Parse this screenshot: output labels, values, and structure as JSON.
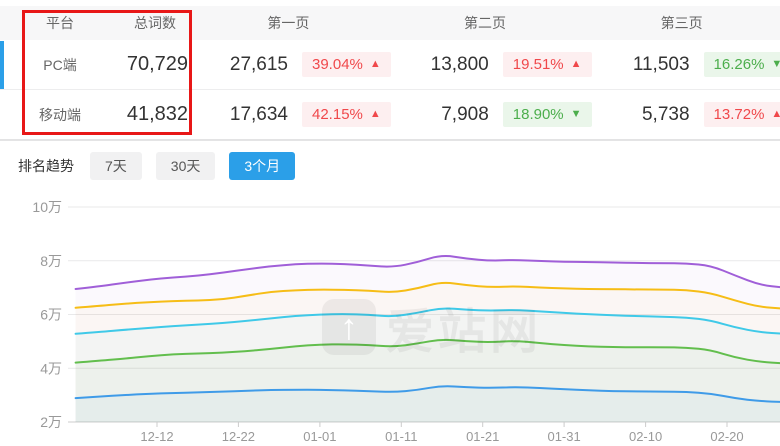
{
  "colors": {
    "accent": "#2b9fe8",
    "red": "#f0484b",
    "red_bg": "#fdeff0",
    "green": "#4cae4c",
    "green_bg": "#eaf6ea",
    "annotation": "#e81717"
  },
  "table": {
    "headers": [
      "平台",
      "总词数",
      "第一页",
      "第二页",
      "第三页"
    ],
    "rows": [
      {
        "platform": "PC端",
        "total": "70,729",
        "page1": {
          "count": "27,615",
          "pct": "39.04%",
          "arrow": "▲",
          "tone": "red"
        },
        "page2": {
          "count": "13,800",
          "pct": "19.51%",
          "arrow": "▲",
          "tone": "red"
        },
        "page3": {
          "count": "11,503",
          "pct": "16.26%",
          "arrow": "▼",
          "tone": "green"
        }
      },
      {
        "platform": "移动端",
        "total": "41,832",
        "page1": {
          "count": "17,634",
          "pct": "42.15%",
          "arrow": "▲",
          "tone": "red"
        },
        "page2": {
          "count": "7,908",
          "pct": "18.90%",
          "arrow": "▼",
          "tone": "green"
        },
        "page3": {
          "count": "5,738",
          "pct": "13.72%",
          "arrow": "▲",
          "tone": "red"
        }
      }
    ]
  },
  "trend": {
    "label": "排名趋势",
    "tabs": [
      {
        "label": "7天",
        "active": false
      },
      {
        "label": "30天",
        "active": false
      },
      {
        "label": "3个月",
        "active": true
      }
    ]
  },
  "watermark": {
    "text": "爱站网",
    "icon": "aizhan-arrow-logo"
  },
  "chart_data": {
    "type": "line",
    "title": "排名趋势 (3个月)",
    "legend": "none",
    "grid": true,
    "y_axis": {
      "tick_labels": [
        "2万",
        "4万",
        "6万",
        "8万",
        "10万"
      ],
      "tick_values": [
        20000,
        40000,
        60000,
        80000,
        100000
      ],
      "range": [
        20000,
        100000
      ]
    },
    "x_axis": {
      "tick_labels": [
        "12-12",
        "12-22",
        "01-01",
        "01-11",
        "01-21",
        "01-31",
        "02-10",
        "02-20"
      ],
      "tick_days": [
        10,
        20,
        30,
        40,
        50,
        60,
        70,
        80
      ]
    },
    "x_days": [
      0,
      3,
      6,
      9,
      12,
      15,
      18,
      21,
      24,
      27,
      30,
      33,
      36,
      39,
      42,
      45,
      48,
      51,
      54,
      57,
      60,
      63,
      66,
      69,
      72,
      75,
      78,
      81,
      84,
      87
    ],
    "series": [
      {
        "name": "series-purple",
        "color": "#a05fd8",
        "values_wan": [
          6.95,
          7.05,
          7.18,
          7.3,
          7.38,
          7.44,
          7.55,
          7.68,
          7.8,
          7.87,
          7.9,
          7.88,
          7.82,
          7.76,
          7.95,
          8.22,
          8.08,
          8.0,
          8.03,
          7.99,
          7.96,
          7.95,
          7.93,
          7.92,
          7.91,
          7.9,
          7.82,
          7.45,
          7.1,
          7.0
        ]
      },
      {
        "name": "series-yellow",
        "color": "#f6bd16",
        "values_wan": [
          6.25,
          6.32,
          6.4,
          6.46,
          6.5,
          6.52,
          6.56,
          6.7,
          6.85,
          6.9,
          6.93,
          6.92,
          6.89,
          6.82,
          6.97,
          7.22,
          7.09,
          7.02,
          7.05,
          7.0,
          6.97,
          6.95,
          6.94,
          6.93,
          6.93,
          6.91,
          6.8,
          6.52,
          6.28,
          6.22
        ]
      },
      {
        "name": "series-cyan",
        "color": "#3fc9e8",
        "values_wan": [
          5.28,
          5.35,
          5.43,
          5.5,
          5.57,
          5.62,
          5.68,
          5.76,
          5.86,
          5.95,
          6.0,
          6.02,
          5.99,
          5.92,
          6.06,
          6.25,
          6.17,
          6.14,
          6.17,
          6.12,
          6.06,
          6.01,
          5.97,
          5.94,
          5.92,
          5.89,
          5.78,
          5.52,
          5.34,
          5.28
        ]
      },
      {
        "name": "series-green",
        "color": "#62be4d",
        "values_wan": [
          4.21,
          4.28,
          4.36,
          4.45,
          4.52,
          4.55,
          4.58,
          4.64,
          4.72,
          4.82,
          4.88,
          4.89,
          4.87,
          4.8,
          4.92,
          5.08,
          5.0,
          4.97,
          5.02,
          4.94,
          4.86,
          4.81,
          4.79,
          4.78,
          4.78,
          4.77,
          4.68,
          4.4,
          4.24,
          4.18
        ]
      },
      {
        "name": "series-blue",
        "color": "#3f9be8",
        "values_wan": [
          2.89,
          2.95,
          3.0,
          3.05,
          3.08,
          3.1,
          3.13,
          3.16,
          3.19,
          3.2,
          3.2,
          3.18,
          3.15,
          3.11,
          3.19,
          3.35,
          3.29,
          3.27,
          3.3,
          3.27,
          3.22,
          3.18,
          3.15,
          3.14,
          3.13,
          3.12,
          3.06,
          2.88,
          2.78,
          2.74
        ]
      }
    ]
  }
}
